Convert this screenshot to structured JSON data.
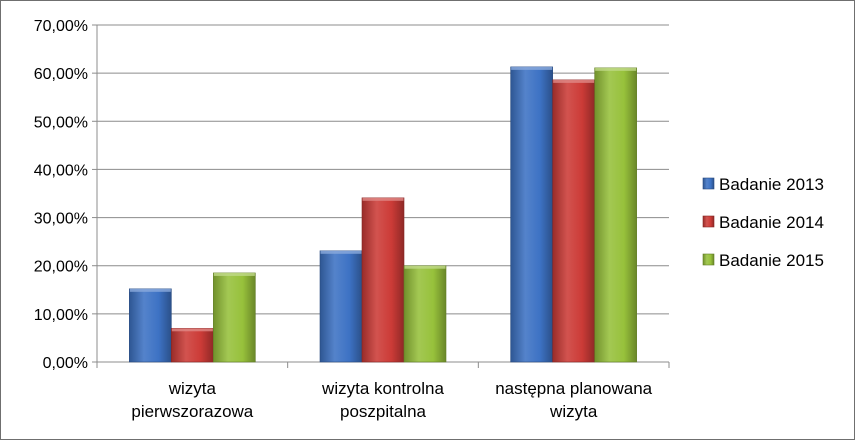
{
  "chart_data": {
    "type": "bar",
    "categories": [
      [
        "wizyta",
        "pierwszorazowa"
      ],
      [
        "wizyta kontrolna",
        "poszpitalna"
      ],
      [
        "następna planowana",
        "wizyta"
      ]
    ],
    "series": [
      {
        "name": "Badanie 2013",
        "color": "#3d72c4",
        "values": [
          15.2,
          23.1,
          61.3
        ]
      },
      {
        "name": "Badanie 2014",
        "color": "#cc3b37",
        "values": [
          7.0,
          34.1,
          58.6
        ]
      },
      {
        "name": "Badanie 2015",
        "color": "#97c13b",
        "values": [
          18.5,
          20.0,
          61.1
        ]
      }
    ],
    "yticks": [
      "0,00%",
      "10,00%",
      "20,00%",
      "30,00%",
      "40,00%",
      "50,00%",
      "60,00%",
      "70,00%"
    ],
    "ylim": [
      0,
      70
    ],
    "ystep": 10,
    "grid": true,
    "legend_position": "right"
  }
}
